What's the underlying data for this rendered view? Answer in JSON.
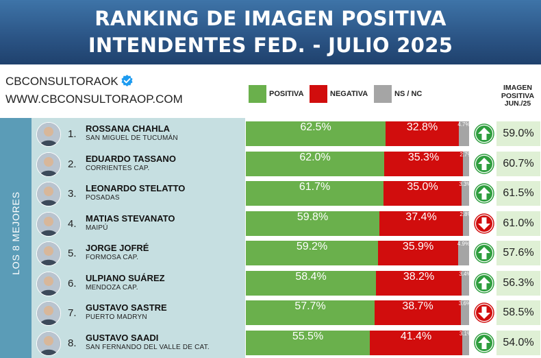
{
  "header": {
    "title_line1": "RANKING DE IMAGEN POSITIVA",
    "title_line2": "INTENDENTES FED. - JULIO 2025"
  },
  "brand": {
    "account": "CBCONSULTORAOK",
    "website": "WWW.CBCONSULTORAOP.COM",
    "verified_icon": "verified-badge-icon"
  },
  "legend": {
    "positive": "POSITIVA",
    "negative": "NEGATIVA",
    "ns_nc": "NS / NC"
  },
  "side_label": "LOS 8 MEJORES",
  "june_header": {
    "line1": "IMAGEN",
    "line2": "POSITIVA",
    "line3": "JUN./25"
  },
  "colors": {
    "positive": "#6ab04c",
    "negative": "#d10d0d",
    "ns_nc": "#a5a5a5",
    "arrow_up": "#2e9e3e",
    "arrow_down": "#d10d0d"
  },
  "rows": [
    {
      "rank": "1.",
      "name": "ROSSANA CHAHLA",
      "city": "SAN MIGUEL DE TUCUMÁN",
      "pos_label": "62.5%",
      "neg_label": "32.8%",
      "ns_label": "4.7%",
      "trend": "up",
      "june": "59.0%"
    },
    {
      "rank": "2.",
      "name": "EDUARDO TASSANO",
      "city": "CORRIENTES CAP.",
      "pos_label": "62.0%",
      "neg_label": "35.3%",
      "ns_label": "2.7%",
      "trend": "up",
      "june": "60.7%"
    },
    {
      "rank": "3.",
      "name": "LEONARDO STELATTO",
      "city": "POSADAS",
      "pos_label": "61.7%",
      "neg_label": "35.0%",
      "ns_label": "3.3%",
      "trend": "up",
      "june": "61.5%"
    },
    {
      "rank": "4.",
      "name": "MATIAS STEVANATO",
      "city": "MAIPÚ",
      "pos_label": "59.8%",
      "neg_label": "37.4%",
      "ns_label": "2.8%",
      "trend": "down",
      "june": "61.0%"
    },
    {
      "rank": "5.",
      "name": "JORGE JOFRÉ",
      "city": "FORMOSA CAP.",
      "pos_label": "59.2%",
      "neg_label": "35.9%",
      "ns_label": "4.9%",
      "trend": "up",
      "june": "57.6%"
    },
    {
      "rank": "6.",
      "name": "ULPIANO SUÁREZ",
      "city": "MENDOZA CAP.",
      "pos_label": "58.4%",
      "neg_label": "38.2%",
      "ns_label": "3.4%",
      "trend": "up",
      "june": "56.3%"
    },
    {
      "rank": "7.",
      "name": "GUSTAVO SASTRE",
      "city": "PUERTO MADRYN",
      "pos_label": "57.7%",
      "neg_label": "38.7%",
      "ns_label": "3.6%",
      "trend": "down",
      "june": "58.5%"
    },
    {
      "rank": "8.",
      "name": "GUSTAVO SAADI",
      "city": "SAN FERNANDO DEL VALLE DE CAT.",
      "pos_label": "55.5%",
      "neg_label": "41.4%",
      "ns_label": "3.1%",
      "trend": "up",
      "june": "54.0%"
    }
  ],
  "chart_data": {
    "type": "bar",
    "orientation": "horizontal",
    "stacked": true,
    "title": "RANKING DE IMAGEN POSITIVA INTENDENTES FED. - JULIO 2025",
    "categories": [
      "ROSSANA CHAHLA",
      "EDUARDO TASSANO",
      "LEONARDO STELATTO",
      "MATIAS STEVANATO",
      "JORGE JOFRÉ",
      "ULPIANO SUÁREZ",
      "GUSTAVO SASTRE",
      "GUSTAVO SAADI"
    ],
    "series": [
      {
        "name": "POSITIVA",
        "values": [
          62.5,
          62.0,
          61.7,
          59.8,
          59.2,
          58.4,
          57.7,
          55.5
        ]
      },
      {
        "name": "NEGATIVA",
        "values": [
          32.8,
          35.3,
          35.0,
          37.4,
          35.9,
          38.2,
          38.7,
          41.4
        ]
      },
      {
        "name": "NS / NC",
        "values": [
          4.7,
          2.7,
          3.3,
          2.8,
          4.9,
          3.4,
          3.6,
          3.1
        ]
      }
    ],
    "previous_positive_jun25": [
      59.0,
      60.7,
      61.5,
      61.0,
      57.6,
      56.3,
      58.5,
      54.0
    ],
    "xlim": [
      0,
      100
    ],
    "unit": "%"
  }
}
